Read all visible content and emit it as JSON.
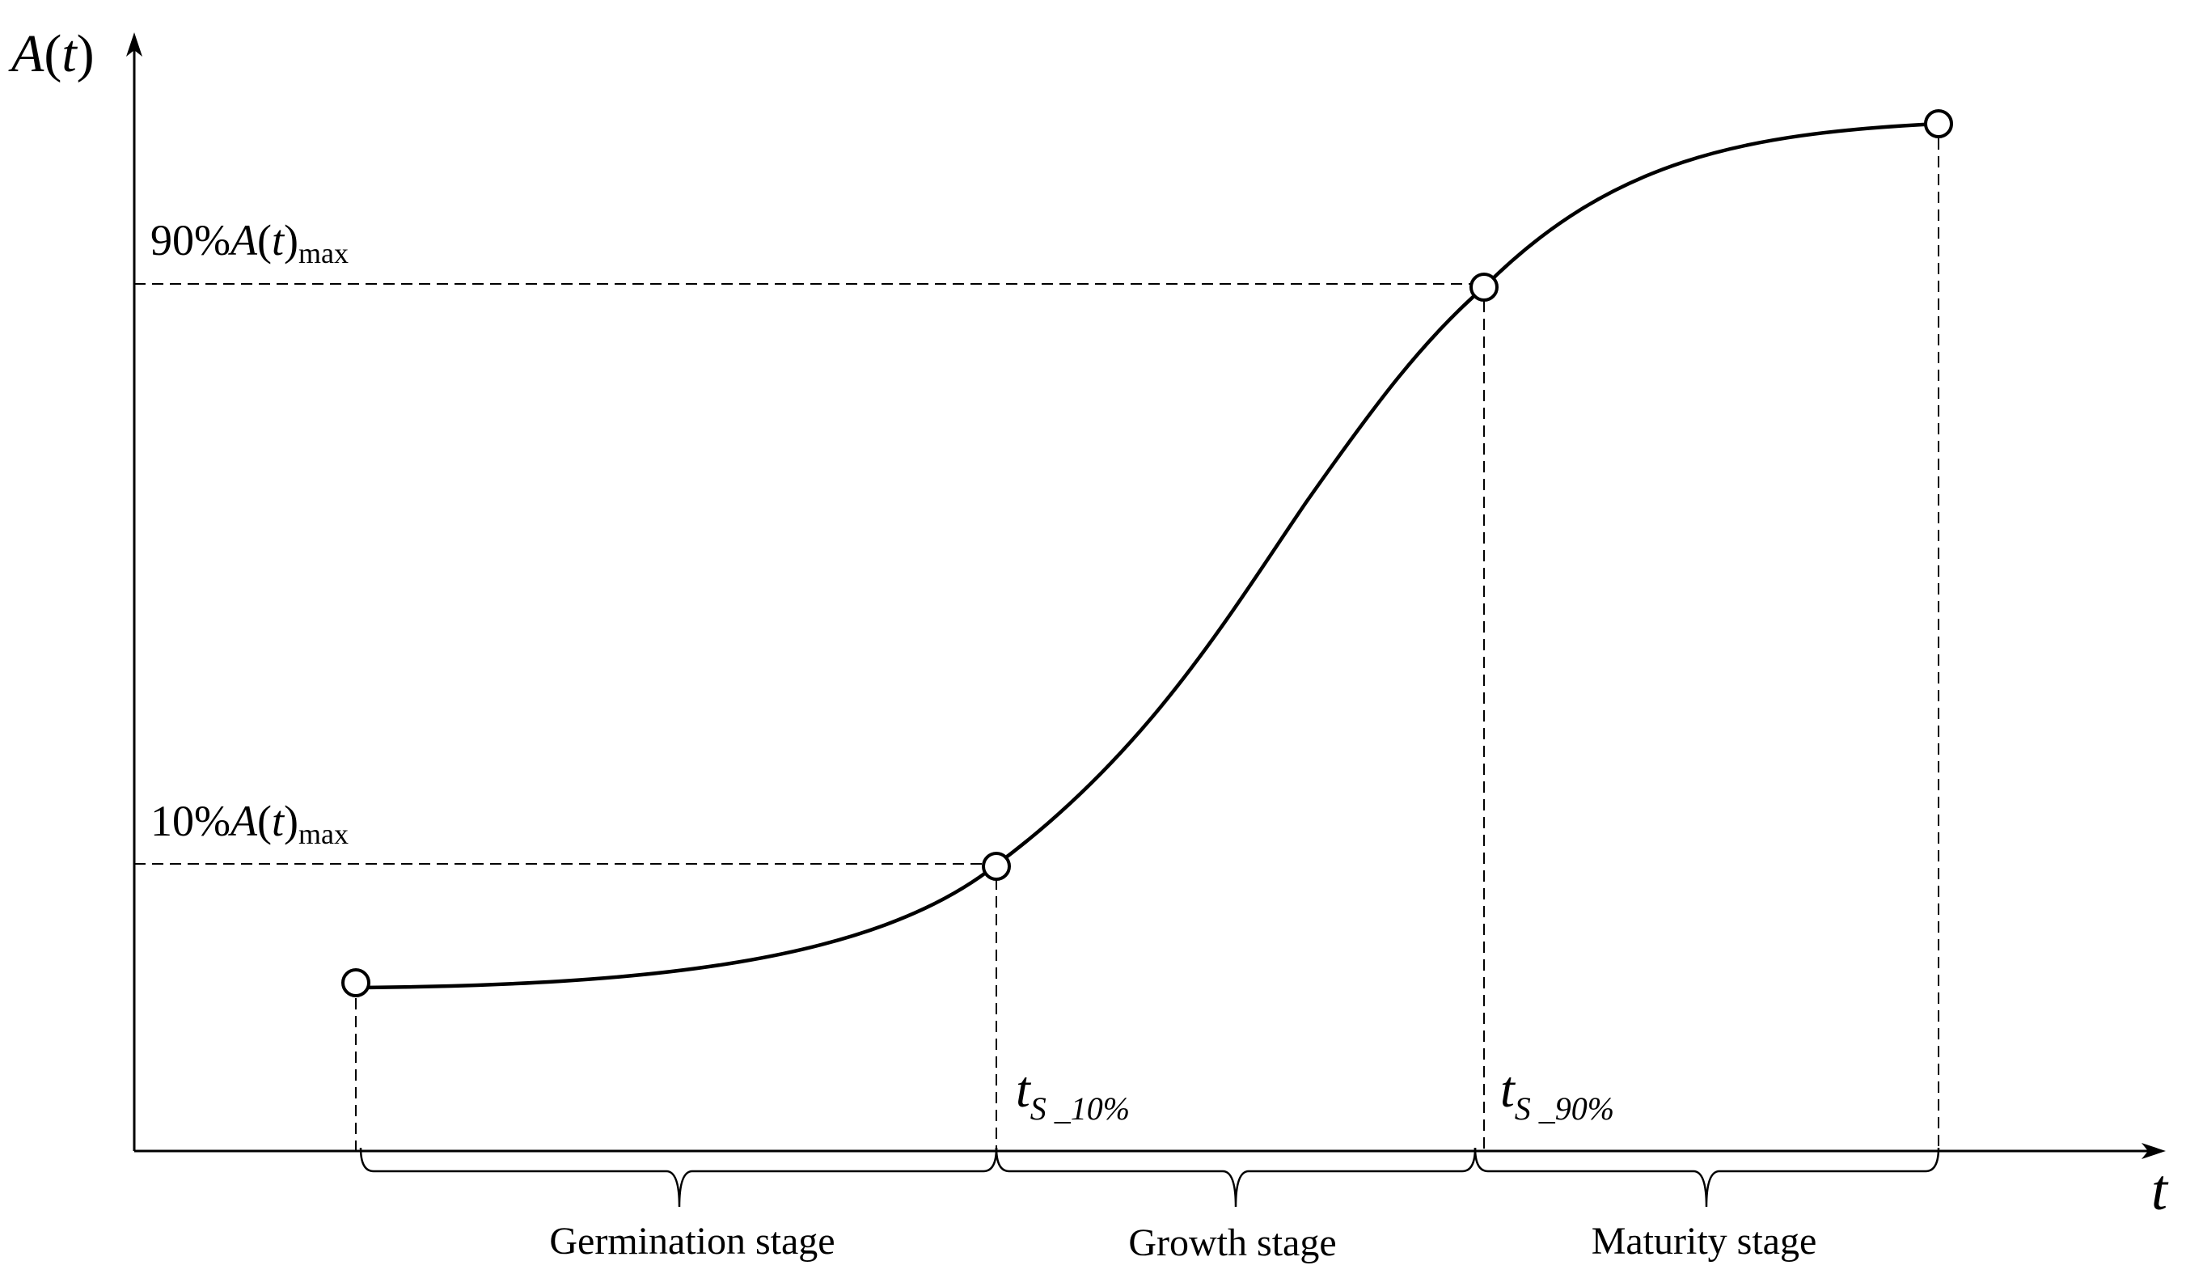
{
  "axes": {
    "y_label": "A(t)",
    "y_label_base": "A",
    "y_label_paren_open": "(",
    "y_label_var": "t",
    "y_label_paren_close": ")",
    "x_label": "t"
  },
  "levels": {
    "upper": {
      "prefix": "90%",
      "base": "A",
      "open": "(",
      "var": "t",
      "close": ")",
      "sub": "max"
    },
    "lower": {
      "prefix": "10%",
      "base": "A",
      "open": "(",
      "var": "t",
      "close": ")",
      "sub": "max"
    }
  },
  "time_markers": {
    "t10": {
      "base": "t",
      "sub": "S _10%"
    },
    "t90": {
      "base": "t",
      "sub": "S _90%"
    }
  },
  "stages": [
    {
      "label": "Germination stage"
    },
    {
      "label": "Growth stage"
    },
    {
      "label": "Maturity stage"
    }
  ],
  "colors": {
    "stroke": "#000000",
    "background": "#ffffff"
  }
}
